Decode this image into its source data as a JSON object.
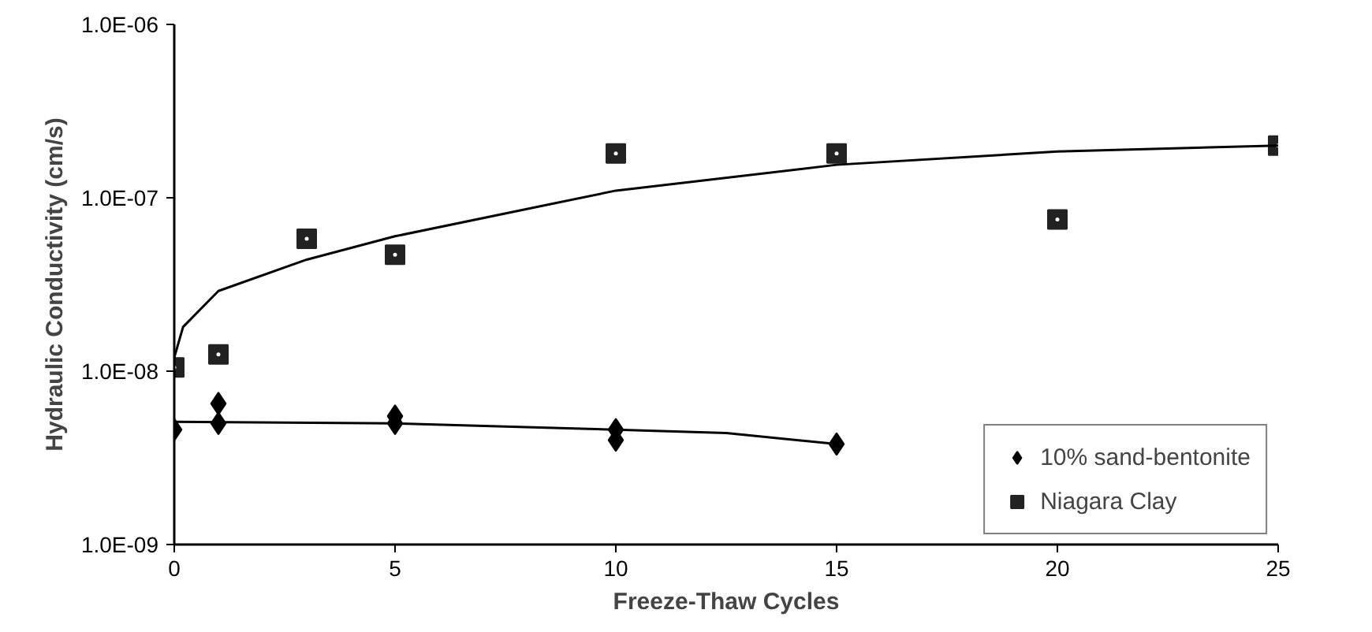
{
  "chart_data": {
    "type": "scatter",
    "xlabel": "Freeze-Thaw Cycles",
    "ylabel": "Hydraulic Conductivity (cm/s)",
    "log": "y",
    "xlim": [
      0,
      25
    ],
    "xticks": [
      0,
      5,
      10,
      15,
      20,
      25
    ],
    "ylim": [
      1e-09,
      1e-06
    ],
    "yticks": [
      {
        "value": 1e-09,
        "label": "1.0E-09"
      },
      {
        "value": 1e-08,
        "label": "1.0E-08"
      },
      {
        "value": 1e-07,
        "label": "1.0E-07"
      },
      {
        "value": 1e-06,
        "label": "1.0E-06"
      }
    ],
    "grid": false,
    "legend": "bottom right",
    "series": [
      {
        "name": "10% sand-bentonite",
        "marker": "diamond",
        "color": "#000000",
        "x": [
          0,
          1,
          1,
          5,
          5,
          10,
          10,
          15
        ],
        "values": [
          4.6e-09,
          5e-09,
          6.5e-09,
          5.5e-09,
          5e-09,
          4.6e-09,
          4e-09,
          3.8e-09
        ]
      },
      {
        "name": "Niagara Clay",
        "marker": "square",
        "color": "#222222",
        "x": [
          0,
          1,
          3,
          5,
          10,
          15,
          20,
          25
        ],
        "values": [
          1.05e-08,
          1.25e-08,
          5.8e-08,
          4.7e-08,
          1.8e-07,
          1.8e-07,
          7.5e-08,
          2e-07
        ]
      },
      {
        "type": "line",
        "color": "#000000",
        "x": [
          0,
          5,
          10,
          12.5,
          15
        ],
        "values": [
          5.1e-09,
          5e-09,
          4.6e-09,
          4.4e-09,
          3.8e-09
        ]
      },
      {
        "type": "line",
        "color": "#000000",
        "x": [
          0,
          0.2,
          1,
          3,
          5,
          10,
          15,
          20,
          25
        ],
        "values": [
          1.2e-08,
          1.8e-08,
          2.9e-08,
          4.4e-08,
          6e-08,
          1.1e-07,
          1.55e-07,
          1.85e-07,
          2e-07
        ]
      }
    ]
  }
}
